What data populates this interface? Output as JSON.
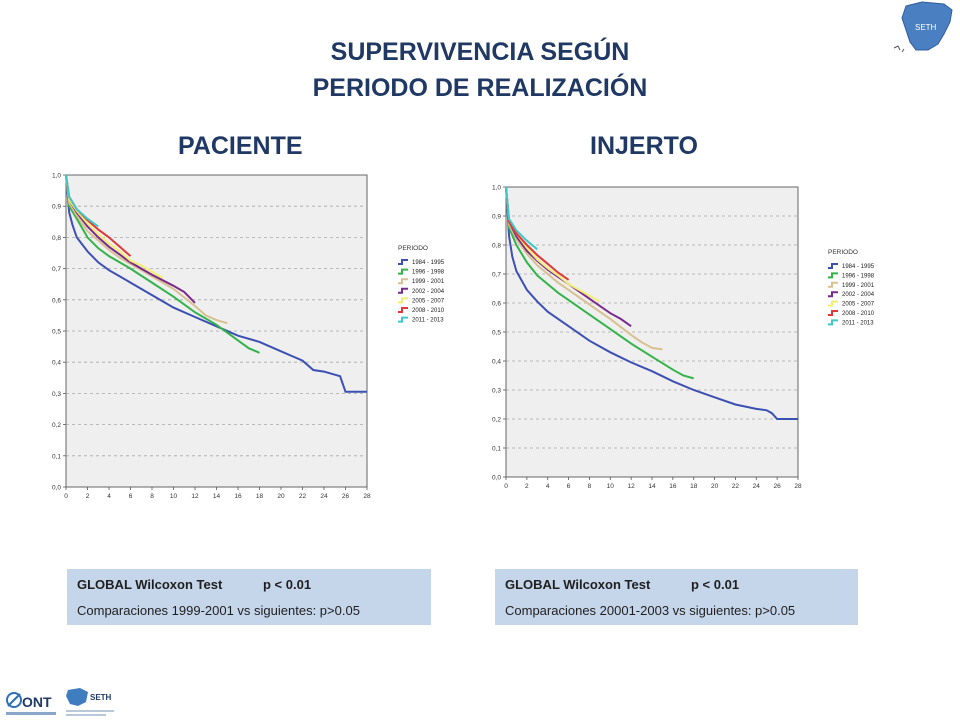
{
  "title_line1": "SUPERVIVENCIA SEGÚN",
  "title_line2": "PERIODO DE REALIZACIÓN",
  "logo_top_text": "SETH",
  "footer": {
    "ont_text": "ONT",
    "seth_text": "SETH"
  },
  "colors": {
    "title": "#1f3864",
    "box_bg": "#c5d5ea",
    "plot_bg": "#efefef"
  },
  "stats": [
    {
      "test_label": "GLOBAL Wilcoxon Test",
      "p_value": "p < 0.01",
      "comparison": "Comparaciones  1999-2001 vs siguientes: p>0.05"
    },
    {
      "test_label": "GLOBAL Wilcoxon Test",
      "p_value": "p < 0.01",
      "comparison": "Comparaciones  20001-2003 vs siguientes: p>0.05"
    }
  ],
  "chart_data": [
    {
      "type": "line",
      "title": "PACIENTE",
      "xlim": [
        0,
        28
      ],
      "ylim": [
        0,
        1
      ],
      "x_ticks": [
        "0",
        "2",
        "4",
        "6",
        "8",
        "10",
        "12",
        "14",
        "16",
        "18",
        "20",
        "22",
        "24",
        "26",
        "28"
      ],
      "y_ticks": [
        "0,0",
        "0,1",
        "0,2",
        "0,3",
        "0,4",
        "0,5",
        "0,6",
        "0,7",
        "0,8",
        "0,9",
        "1,0"
      ],
      "legend_title": "PERIODO",
      "legend_position": "right",
      "grid": "horizontal dashed",
      "series": [
        {
          "name": "1984 - 1995",
          "color": "#3c4fb3",
          "x": [
            0,
            0.3,
            0.6,
            1,
            2,
            3,
            4,
            5,
            6,
            8,
            10,
            12,
            14,
            16,
            18,
            20,
            21,
            22,
            23,
            24,
            25,
            25.5,
            26,
            28
          ],
          "y": [
            1.0,
            0.88,
            0.84,
            0.8,
            0.755,
            0.72,
            0.695,
            0.675,
            0.655,
            0.615,
            0.575,
            0.545,
            0.515,
            0.485,
            0.465,
            0.435,
            0.42,
            0.405,
            0.375,
            0.37,
            0.36,
            0.355,
            0.305,
            0.305
          ]
        },
        {
          "name": "1996 - 1998",
          "color": "#33b34a",
          "x": [
            0,
            0.3,
            1,
            2,
            3,
            4,
            5,
            6,
            8,
            10,
            12,
            14,
            16,
            17,
            18
          ],
          "y": [
            1.0,
            0.9,
            0.86,
            0.8,
            0.765,
            0.74,
            0.72,
            0.7,
            0.655,
            0.61,
            0.56,
            0.52,
            0.47,
            0.445,
            0.43
          ]
        },
        {
          "name": "1999 - 2001",
          "color": "#d8c090",
          "x": [
            0,
            0.3,
            1,
            2,
            3,
            4,
            5,
            6,
            8,
            10,
            12,
            13,
            14,
            15
          ],
          "y": [
            1.0,
            0.91,
            0.87,
            0.82,
            0.79,
            0.76,
            0.735,
            0.715,
            0.675,
            0.635,
            0.58,
            0.55,
            0.535,
            0.525
          ]
        },
        {
          "name": "2002 - 2004",
          "color": "#7a2a8c",
          "x": [
            0,
            0.3,
            1,
            2,
            3,
            4,
            5,
            6,
            8,
            10,
            11,
            12
          ],
          "y": [
            1.0,
            0.92,
            0.88,
            0.835,
            0.8,
            0.77,
            0.745,
            0.72,
            0.68,
            0.645,
            0.625,
            0.59
          ]
        },
        {
          "name": "2005 - 2007",
          "color": "#f2ee70",
          "x": [
            0,
            0.3,
            1,
            2,
            3,
            4,
            5,
            6,
            7,
            8,
            9
          ],
          "y": [
            1.0,
            0.92,
            0.885,
            0.845,
            0.81,
            0.78,
            0.755,
            0.725,
            0.71,
            0.69,
            0.67
          ]
        },
        {
          "name": "2008 - 2010",
          "color": "#e03838",
          "x": [
            0,
            0.3,
            1,
            2,
            3,
            4,
            5,
            6
          ],
          "y": [
            1.0,
            0.93,
            0.89,
            0.855,
            0.825,
            0.8,
            0.77,
            0.74
          ]
        },
        {
          "name": "2011 - 2013",
          "color": "#40c8c8",
          "x": [
            0,
            0.3,
            1,
            2,
            3
          ],
          "y": [
            1.0,
            0.93,
            0.89,
            0.86,
            0.835
          ]
        }
      ]
    },
    {
      "type": "line",
      "title": "INJERTO",
      "xlim": [
        0,
        28
      ],
      "ylim": [
        0,
        1
      ],
      "x_ticks": [
        "0",
        "2",
        "4",
        "6",
        "8",
        "10",
        "12",
        "14",
        "16",
        "18",
        "20",
        "22",
        "24",
        "26",
        "28"
      ],
      "y_ticks": [
        "0,0",
        "0,1",
        "0,2",
        "0,3",
        "0,4",
        "0,5",
        "0,6",
        "0,7",
        "0,8",
        "0,9",
        "1,0"
      ],
      "legend_title": "PERIODO",
      "legend_position": "right",
      "grid": "horizontal dashed",
      "series": [
        {
          "name": "1984 - 1995",
          "color": "#3c4fb3",
          "x": [
            0,
            0.3,
            0.6,
            1,
            2,
            3,
            4,
            5,
            6,
            8,
            10,
            12,
            14,
            16,
            18,
            20,
            22,
            24,
            25,
            25.5,
            26,
            28
          ],
          "y": [
            1.0,
            0.83,
            0.76,
            0.71,
            0.645,
            0.605,
            0.57,
            0.545,
            0.52,
            0.47,
            0.43,
            0.395,
            0.365,
            0.33,
            0.3,
            0.275,
            0.25,
            0.235,
            0.23,
            0.22,
            0.2,
            0.2
          ]
        },
        {
          "name": "1996 - 1998",
          "color": "#33b34a",
          "x": [
            0,
            0.3,
            1,
            2,
            3,
            4,
            5,
            6,
            8,
            10,
            12,
            14,
            16,
            17,
            18
          ],
          "y": [
            1.0,
            0.86,
            0.8,
            0.74,
            0.695,
            0.665,
            0.635,
            0.61,
            0.56,
            0.51,
            0.46,
            0.415,
            0.37,
            0.35,
            0.34
          ]
        },
        {
          "name": "1999 - 2001",
          "color": "#d8c090",
          "x": [
            0,
            0.3,
            1,
            2,
            3,
            4,
            5,
            6,
            8,
            10,
            12,
            13,
            14,
            15
          ],
          "y": [
            1.0,
            0.87,
            0.82,
            0.77,
            0.73,
            0.7,
            0.67,
            0.645,
            0.595,
            0.545,
            0.49,
            0.465,
            0.445,
            0.44
          ]
        },
        {
          "name": "2002 - 2004",
          "color": "#7a2a8c",
          "x": [
            0,
            0.3,
            1,
            2,
            3,
            4,
            5,
            6,
            8,
            10,
            11,
            12
          ],
          "y": [
            1.0,
            0.88,
            0.83,
            0.78,
            0.745,
            0.715,
            0.69,
            0.665,
            0.615,
            0.565,
            0.545,
            0.52
          ]
        },
        {
          "name": "2005 - 2007",
          "color": "#f2ee70",
          "x": [
            0,
            0.3,
            1,
            2,
            3,
            4,
            5,
            6,
            7,
            8,
            9
          ],
          "y": [
            1.0,
            0.88,
            0.84,
            0.79,
            0.75,
            0.72,
            0.695,
            0.665,
            0.645,
            0.625,
            0.605
          ]
        },
        {
          "name": "2008 - 2010",
          "color": "#e03838",
          "x": [
            0,
            0.3,
            1,
            2,
            3,
            4,
            5,
            6
          ],
          "y": [
            1.0,
            0.88,
            0.84,
            0.8,
            0.765,
            0.735,
            0.705,
            0.68
          ]
        },
        {
          "name": "2011 - 2013",
          "color": "#40c8c8",
          "x": [
            0,
            0.3,
            1,
            2,
            3
          ],
          "y": [
            1.0,
            0.89,
            0.85,
            0.815,
            0.785
          ]
        }
      ]
    }
  ]
}
